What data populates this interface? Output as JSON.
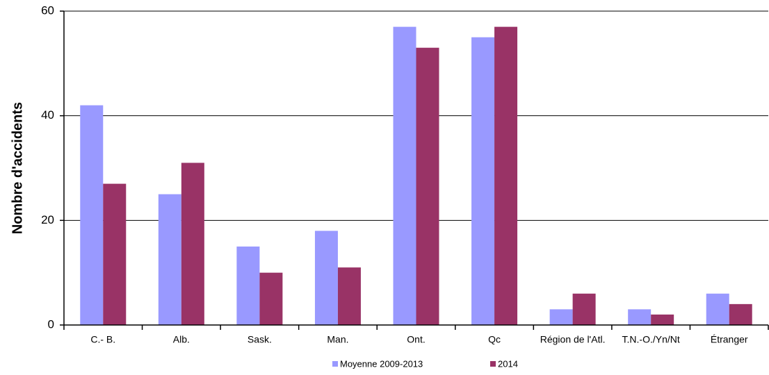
{
  "chart_data": {
    "type": "bar",
    "y_label": "Nombre d'accidents",
    "categories": [
      "C.- B.",
      "Alb.",
      "Sask.",
      "Man.",
      "Ont.",
      "Qc",
      "Région de l'Atl.",
      "T.N.-O./Yn/Nt",
      "Étranger"
    ],
    "series": [
      {
        "name": "Moyenne 2009-2013",
        "color": "#9999ff",
        "values": [
          42,
          25,
          15,
          18,
          57,
          55,
          3,
          3,
          6
        ]
      },
      {
        "name": "2014",
        "color": "#993366",
        "values": [
          27,
          31,
          10,
          11,
          53,
          57,
          6,
          2,
          4
        ]
      }
    ],
    "ylim": [
      0,
      60
    ],
    "yticks": [
      0,
      20,
      40,
      60
    ],
    "grid": true,
    "legend": "bottom"
  }
}
